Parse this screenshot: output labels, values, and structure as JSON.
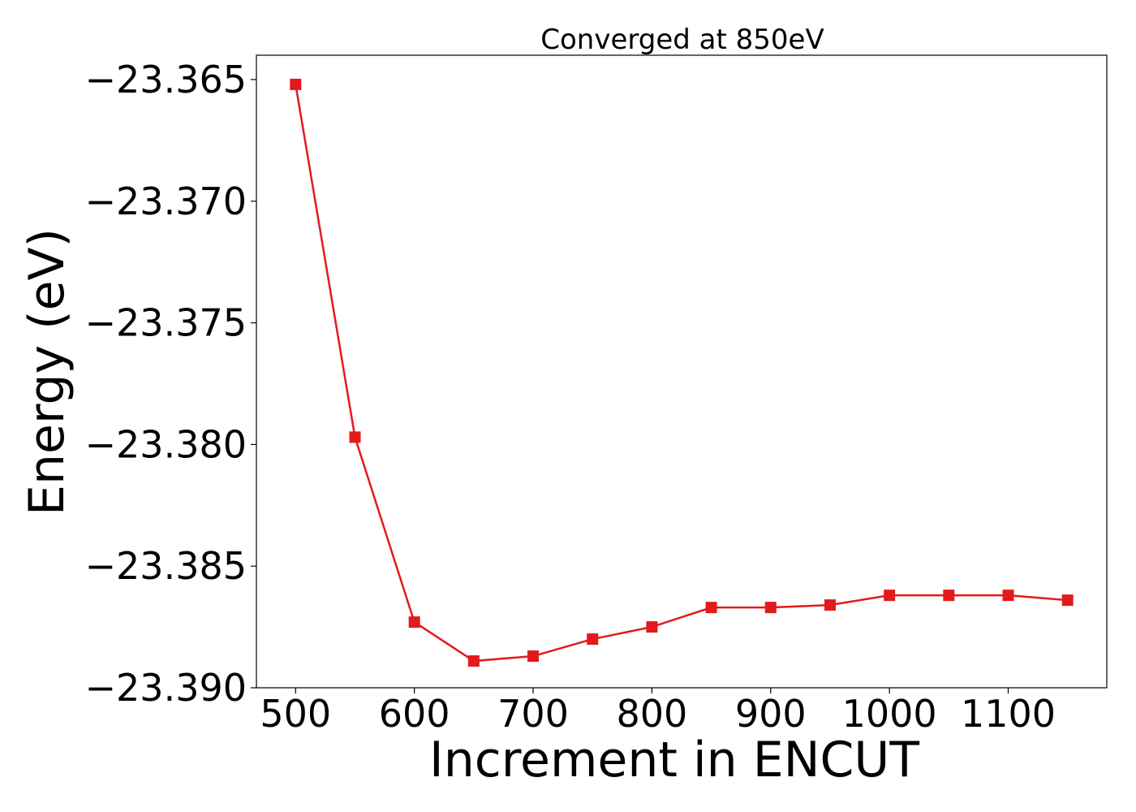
{
  "chart_data": {
    "type": "line",
    "title": "Converged at 850eV",
    "xlabel": "Increment in ENCUT",
    "ylabel": "Energy (eV)",
    "xlim": [
      467,
      1183
    ],
    "ylim": [
      -23.39,
      -23.364
    ],
    "xticks": [
      500,
      600,
      700,
      800,
      900,
      1000,
      1100
    ],
    "xtick_labels": [
      "500",
      "600",
      "700",
      "800",
      "900",
      "1000",
      "1100"
    ],
    "yticks": [
      -23.365,
      -23.37,
      -23.375,
      -23.38,
      -23.385,
      -23.39
    ],
    "ytick_labels": [
      "−23.365",
      "−23.370",
      "−23.375",
      "−23.380",
      "−23.385",
      "−23.390"
    ],
    "grid": false,
    "series": [
      {
        "color": "#e31a1c",
        "marker": "square",
        "x": [
          500,
          550,
          600,
          650,
          700,
          750,
          800,
          850,
          900,
          950,
          1000,
          1050,
          1100,
          1150
        ],
        "y": [
          -23.3652,
          -23.3797,
          -23.3873,
          -23.3889,
          -23.3887,
          -23.388,
          -23.3875,
          -23.3867,
          -23.3867,
          -23.3866,
          -23.3862,
          -23.3862,
          -23.3862,
          -23.3864
        ]
      }
    ]
  }
}
